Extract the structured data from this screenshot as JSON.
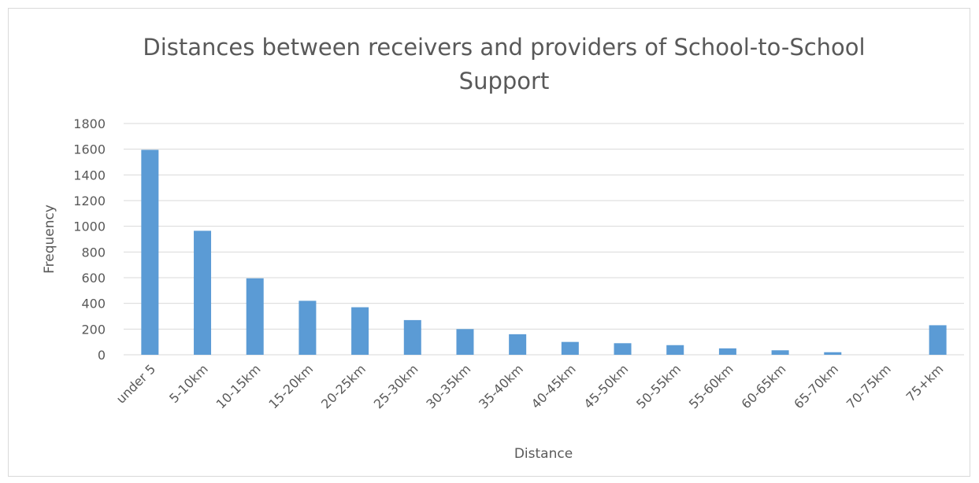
{
  "chart_data": {
    "type": "bar",
    "title_lines": [
      "Distances between receivers and providers of School-to-School",
      "Support"
    ],
    "xlabel": "Distance",
    "ylabel": "Frequency",
    "categories": [
      "under 5",
      "5-10km",
      "10-15km",
      "15-20km",
      "20-25km",
      "25-30km",
      "30-35km",
      "35-40km",
      "40-45km",
      "45-50km",
      "50-55km",
      "55-60km",
      "60-65km",
      "65-70km",
      "70-75km",
      "75+km"
    ],
    "values": [
      1595,
      965,
      595,
      420,
      370,
      270,
      200,
      160,
      100,
      90,
      75,
      50,
      35,
      20,
      0,
      230
    ],
    "ylim": [
      0,
      1800
    ],
    "yticks": [
      0,
      200,
      400,
      600,
      800,
      1000,
      1200,
      1400,
      1600,
      1800
    ],
    "grid": true,
    "legend": "none",
    "colors": {
      "bar": "#5b9bd5",
      "grid": "#d9d9d9",
      "text": "#595959",
      "axis": "#d9d9d9"
    }
  }
}
